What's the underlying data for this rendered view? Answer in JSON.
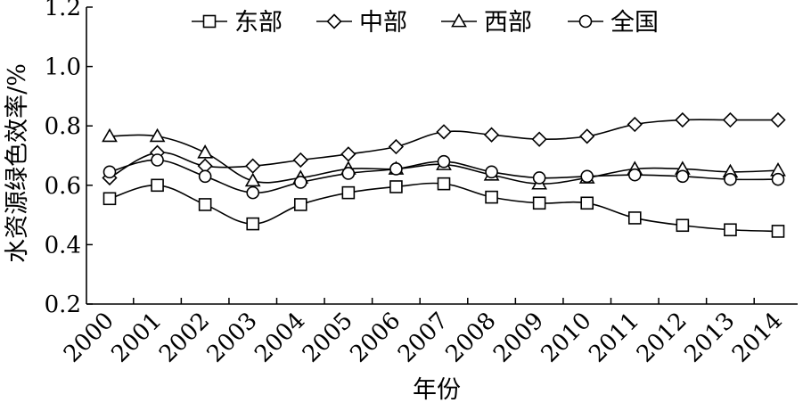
{
  "chart_data": {
    "type": "line",
    "xlabel": "年份",
    "ylabel": "水资源绿色效率/%",
    "ylim": [
      0.2,
      1.2
    ],
    "yticks": [
      "0.2",
      "0.4",
      "0.6",
      "0.8",
      "1.0",
      "1.2"
    ],
    "x": [
      "2000",
      "2001",
      "2002",
      "2003",
      "2004",
      "2005",
      "2006",
      "2007",
      "2008",
      "2009",
      "2010",
      "2011",
      "2012",
      "2013",
      "2014"
    ],
    "grid": false,
    "legend_position": "top",
    "series": [
      {
        "name": "东部",
        "marker": "square",
        "values": [
          0.555,
          0.6,
          0.535,
          0.47,
          0.535,
          0.575,
          0.595,
          0.605,
          0.56,
          0.54,
          0.54,
          0.49,
          0.465,
          0.45,
          0.445
        ]
      },
      {
        "name": "中部",
        "marker": "diamond",
        "values": [
          0.625,
          0.71,
          0.665,
          0.665,
          0.685,
          0.705,
          0.73,
          0.78,
          0.77,
          0.755,
          0.765,
          0.805,
          0.82,
          0.82,
          0.82
        ]
      },
      {
        "name": "西部",
        "marker": "triangle",
        "values": [
          0.765,
          0.765,
          0.71,
          0.615,
          0.625,
          0.655,
          0.655,
          0.67,
          0.635,
          0.605,
          0.625,
          0.655,
          0.655,
          0.645,
          0.65
        ]
      },
      {
        "name": "全国",
        "marker": "circle",
        "values": [
          0.645,
          0.685,
          0.63,
          0.575,
          0.61,
          0.64,
          0.655,
          0.68,
          0.645,
          0.625,
          0.63,
          0.635,
          0.63,
          0.62,
          0.62
        ]
      }
    ]
  }
}
